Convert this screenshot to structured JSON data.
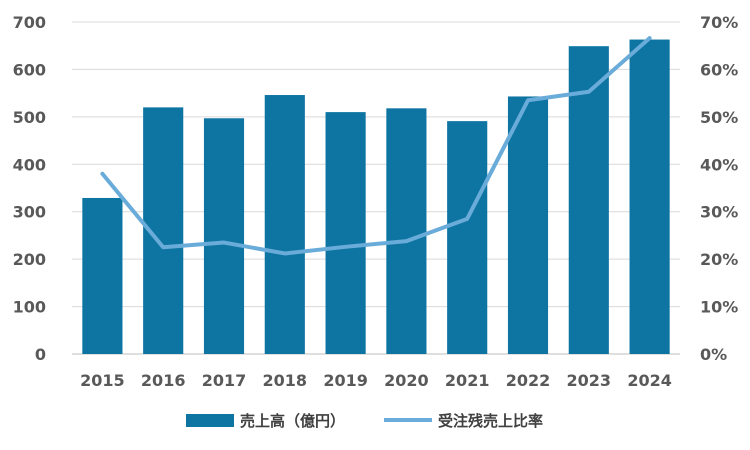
{
  "chart_data": {
    "type": "bar",
    "categories": [
      "2015",
      "2016",
      "2017",
      "2018",
      "2019",
      "2020",
      "2021",
      "2022",
      "2023",
      "2024"
    ],
    "series": [
      {
        "name": "売上高（億円）",
        "type": "bar",
        "axis": "left",
        "values": [
          329,
          520,
          497,
          546,
          510,
          518,
          491,
          543,
          649,
          663
        ],
        "color": "#0e74a2"
      },
      {
        "name": "受注残売上比率",
        "type": "line",
        "axis": "right",
        "values": [
          38.0,
          22.5,
          23.5,
          21.2,
          22.6,
          23.8,
          28.5,
          53.5,
          55.3,
          66.6
        ],
        "color": "#6aacd9"
      }
    ],
    "y_left": {
      "min": 0,
      "max": 700,
      "ticks": [
        "0",
        "100",
        "200",
        "300",
        "400",
        "500",
        "600",
        "700"
      ]
    },
    "y_right": {
      "min": 0,
      "max": 70,
      "ticks": [
        "0%",
        "10%",
        "20%",
        "30%",
        "40%",
        "50%",
        "60%",
        "70%"
      ]
    },
    "grid": true,
    "legend_position": "bottom"
  }
}
